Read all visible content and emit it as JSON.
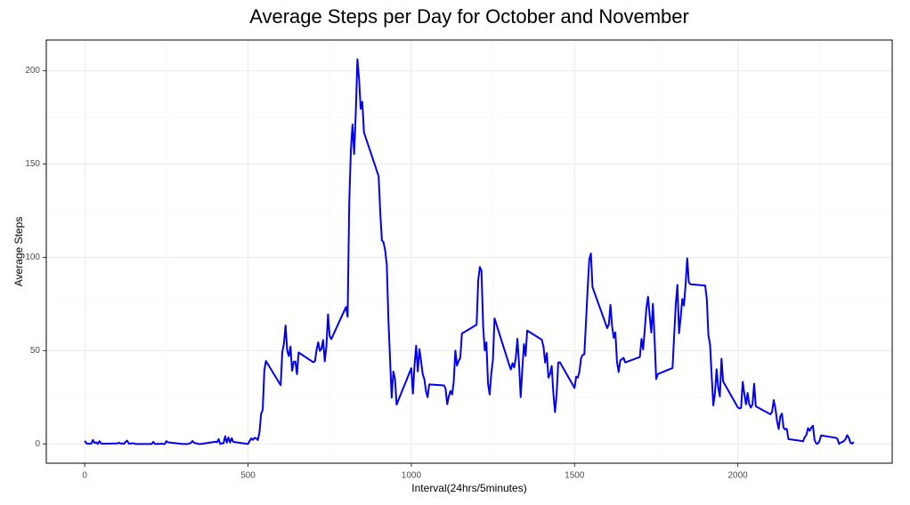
{
  "chart_data": {
    "type": "line",
    "title": "Average Steps per Day for October and November",
    "xlabel": "Interval(24hrs/5minutes)",
    "ylabel": "Average Steps",
    "xlim": [
      -117.75,
      2472.75
    ],
    "ylim": [
      -10.31,
      216.48
    ],
    "xticks": [
      0,
      500,
      1000,
      1500,
      2000
    ],
    "yticks": [
      0,
      50,
      100,
      150,
      200
    ],
    "xminor": [
      250,
      750,
      1250,
      1750,
      2250
    ],
    "yminor": [
      25,
      75,
      125,
      175
    ],
    "grid": true,
    "series": [
      {
        "color": "#0000ee",
        "x": [
          0,
          5,
          10,
          15,
          20,
          25,
          30,
          35,
          40,
          45,
          50,
          55,
          100,
          105,
          110,
          115,
          120,
          125,
          130,
          135,
          140,
          145,
          150,
          155,
          200,
          205,
          210,
          215,
          220,
          225,
          230,
          235,
          240,
          245,
          250,
          255,
          300,
          305,
          310,
          315,
          320,
          325,
          330,
          335,
          340,
          345,
          350,
          355,
          400,
          405,
          410,
          415,
          420,
          425,
          430,
          435,
          440,
          445,
          450,
          455,
          500,
          505,
          510,
          515,
          520,
          525,
          530,
          535,
          540,
          545,
          550,
          555,
          600,
          605,
          610,
          615,
          620,
          625,
          630,
          635,
          640,
          645,
          650,
          655,
          700,
          705,
          710,
          715,
          720,
          725,
          730,
          735,
          740,
          745,
          750,
          755,
          800,
          805,
          810,
          815,
          820,
          825,
          830,
          835,
          840,
          845,
          850,
          855,
          900,
          905,
          910,
          915,
          920,
          925,
          930,
          935,
          940,
          945,
          950,
          955,
          1000,
          1005,
          1010,
          1015,
          1020,
          1025,
          1030,
          1035,
          1040,
          1045,
          1050,
          1055,
          1100,
          1105,
          1110,
          1115,
          1120,
          1125,
          1130,
          1135,
          1140,
          1145,
          1150,
          1155,
          1200,
          1205,
          1210,
          1215,
          1220,
          1225,
          1230,
          1235,
          1240,
          1245,
          1250,
          1255,
          1300,
          1305,
          1310,
          1315,
          1320,
          1325,
          1330,
          1335,
          1340,
          1345,
          1350,
          1355,
          1400,
          1405,
          1410,
          1415,
          1420,
          1425,
          1430,
          1435,
          1440,
          1445,
          1450,
          1455,
          1500,
          1505,
          1510,
          1515,
          1520,
          1525,
          1530,
          1535,
          1540,
          1545,
          1550,
          1555,
          1600,
          1605,
          1610,
          1615,
          1620,
          1625,
          1630,
          1635,
          1640,
          1645,
          1650,
          1655,
          1700,
          1705,
          1710,
          1715,
          1720,
          1725,
          1730,
          1735,
          1740,
          1745,
          1750,
          1755,
          1800,
          1805,
          1810,
          1815,
          1820,
          1825,
          1830,
          1835,
          1840,
          1845,
          1850,
          1855,
          1900,
          1905,
          1910,
          1915,
          1920,
          1925,
          1930,
          1935,
          1940,
          1945,
          1950,
          1955,
          2000,
          2005,
          2010,
          2015,
          2020,
          2025,
          2030,
          2035,
          2040,
          2045,
          2050,
          2055,
          2100,
          2105,
          2110,
          2115,
          2120,
          2125,
          2130,
          2135,
          2140,
          2145,
          2150,
          2155,
          2200,
          2205,
          2210,
          2215,
          2220,
          2225,
          2230,
          2235,
          2240,
          2245,
          2250,
          2255,
          2300,
          2305,
          2310,
          2315,
          2320,
          2325,
          2330,
          2335,
          2340,
          2345,
          2350,
          2355
        ],
        "values": [
          1.7,
          0.3,
          0.1,
          0.2,
          0.1,
          2.1,
          0.5,
          0.9,
          0,
          1.5,
          0.3,
          0.1,
          0.3,
          0.7,
          0.2,
          0.3,
          0,
          1.1,
          1.8,
          0.2,
          0.2,
          0.4,
          0.3,
          0,
          0,
          0,
          1.1,
          0,
          0,
          0.1,
          0,
          0.2,
          0,
          0,
          1.5,
          0.9,
          0,
          0,
          0,
          0,
          0.2,
          0.6,
          1.6,
          0.6,
          0.5,
          0.1,
          0,
          0,
          1.2,
          0.9,
          2.6,
          0,
          0.3,
          0.4,
          4.1,
          0.7,
          3.5,
          0.8,
          3.1,
          1.1,
          0,
          1.6,
          3.0,
          2.2,
          3.3,
          3.0,
          2.1,
          6.1,
          16.0,
          18.3,
          39.5,
          44.5,
          31.5,
          49.3,
          53.8,
          63.5,
          50.0,
          47.1,
          52.2,
          39.3,
          44.0,
          44.2,
          37.4,
          49.0,
          43.8,
          44.4,
          50.5,
          54.5,
          49.9,
          51.0,
          55.7,
          44.3,
          52.3,
          69.5,
          57.8,
          56.2,
          73.4,
          68.2,
          129.4,
          157.5,
          171.2,
          155.4,
          177.3,
          206.2,
          195.9,
          179.6,
          183.4,
          167.0,
          143.5,
          124.0,
          109.1,
          108.1,
          103.7,
          96.0,
          66.2,
          45.2,
          24.8,
          38.8,
          35.0,
          21.1,
          40.6,
          27.0,
          42.4,
          52.7,
          38.9,
          50.8,
          44.3,
          37.4,
          34.7,
          28.3,
          25.1,
          31.9,
          31.4,
          29.7,
          21.3,
          25.5,
          28.4,
          26.5,
          33.4,
          50.0,
          42.0,
          44.6,
          46.0,
          59.2,
          63.9,
          87.7,
          94.8,
          92.8,
          63.4,
          50.2,
          54.5,
          32.4,
          26.5,
          37.7,
          45.1,
          67.3,
          42.3,
          39.9,
          43.3,
          41.0,
          46.2,
          56.4,
          42.8,
          25.1,
          40.0,
          53.5,
          47.3,
          60.8,
          55.8,
          52.0,
          43.6,
          48.7,
          35.5,
          37.5,
          41.8,
          27.5,
          17.1,
          26.1,
          43.6,
          43.8,
          30.0,
          36.1,
          35.5,
          38.8,
          46.0,
          47.8,
          48.1,
          65.3,
          82.9,
          98.7,
          102.1,
          84.0,
          62.1,
          64.1,
          74.5,
          63.2,
          56.9,
          59.8,
          43.9,
          38.6,
          44.7,
          45.5,
          46.2,
          43.7,
          46.6,
          56.3,
          50.7,
          61.2,
          72.7,
          78.9,
          68.9,
          59.7,
          75.1,
          56.5,
          34.8,
          37.5,
          40.7,
          58.0,
          74.7,
          85.3,
          59.3,
          67.8,
          77.7,
          74.2,
          85.3,
          99.5,
          86.6,
          85.6,
          84.9,
          77.8,
          58.0,
          53.4,
          36.3,
          20.7,
          27.4,
          40.0,
          30.2,
          25.5,
          45.7,
          33.5,
          19.6,
          19.0,
          19.3,
          33.3,
          26.8,
          21.2,
          27.3,
          21.3,
          19.5,
          21.3,
          32.3,
          20.2,
          15.9,
          17.2,
          23.5,
          19.2,
          12.5,
          8.0,
          14.7,
          16.3,
          8.7,
          7.8,
          8.1,
          2.6,
          1.5,
          3.7,
          4.8,
          8.5,
          7.1,
          8.7,
          9.8,
          2.2,
          0.3,
          0.1,
          1.6,
          4.6,
          3.3,
          2.8,
          0,
          0.8,
          1.0,
          1.6,
          2.6,
          4.7,
          3.3,
          0.6,
          0.2,
          1.1
        ]
      }
    ]
  }
}
